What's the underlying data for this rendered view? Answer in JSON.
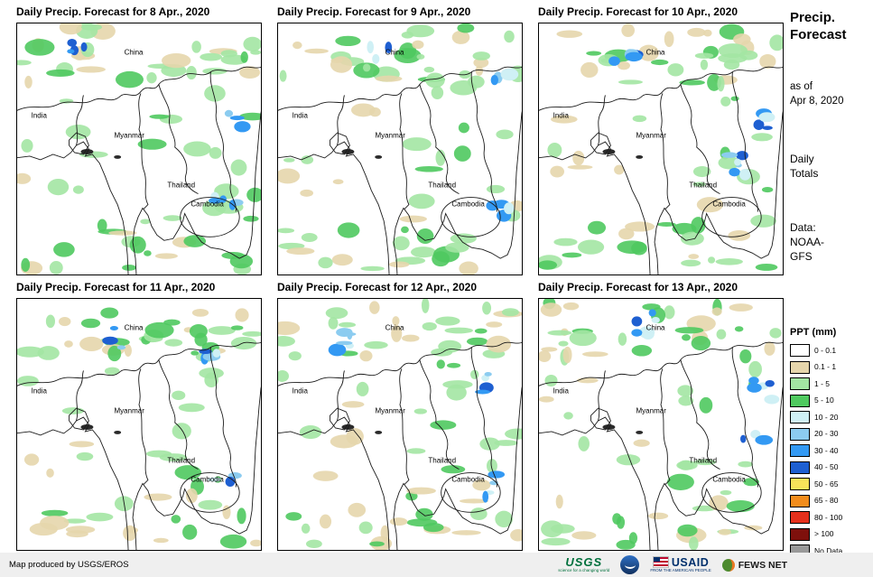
{
  "panels": [
    {
      "title": "Daily Precip. Forecast for 8 Apr., 2020"
    },
    {
      "title": "Daily Precip. Forecast for 9 Apr., 2020"
    },
    {
      "title": "Daily Precip. Forecast for 10 Apr., 2020"
    },
    {
      "title": "Daily Precip. Forecast for 11 Apr., 2020"
    },
    {
      "title": "Daily Precip. Forecast for 12 Apr., 2020"
    },
    {
      "title": "Daily Precip. Forecast for 13 Apr., 2020"
    }
  ],
  "map_labels": [
    "China",
    "India",
    "Myanmar",
    "Thailand",
    "Cambodia"
  ],
  "sidebar": {
    "title_line1": "Precip.",
    "title_line2": "Forecast",
    "as_of_line1": "as of",
    "as_of_line2": "Apr 8, 2020",
    "totals_line1": "Daily",
    "totals_line2": "Totals",
    "data_line1": "Data:",
    "data_line2": "NOAA-",
    "data_line3": "GFS"
  },
  "legend": {
    "title": "PPT (mm)",
    "entries": [
      {
        "label": "0 - 0.1",
        "color": "#FFFFFF"
      },
      {
        "label": "0.1 - 1",
        "color": "#E6D6AC"
      },
      {
        "label": "1 - 5",
        "color": "#A3E6A3"
      },
      {
        "label": "5 - 10",
        "color": "#4FC95F"
      },
      {
        "label": "10 - 20",
        "color": "#CFF0F5"
      },
      {
        "label": "20 - 30",
        "color": "#8CCCF0"
      },
      {
        "label": "30 - 40",
        "color": "#3399F3"
      },
      {
        "label": "40 - 50",
        "color": "#1E5FD1"
      },
      {
        "label": "50 - 65",
        "color": "#F8E35A"
      },
      {
        "label": "65 - 80",
        "color": "#F28C1C"
      },
      {
        "label": "80 - 100",
        "color": "#E5301C"
      },
      {
        "label": "> 100",
        "color": "#7E100C"
      },
      {
        "label": "No Data",
        "color": "#999999"
      }
    ]
  },
  "map_colors": {
    "tan": "#E6D6AC",
    "light_green": "#A3E6A3",
    "green": "#4FC95F",
    "cyan": "#CFF0F5",
    "light_blue": "#8CCCF0",
    "blue": "#3399F3",
    "deep_blue": "#1E5FD1"
  },
  "footer": {
    "credit": "Map produced by USGS/EROS",
    "logos": {
      "usgs": {
        "text": "USGS",
        "tagline": "science for a changing world"
      },
      "noaa": {
        "icon": "noaa-seal-icon"
      },
      "usaid": {
        "text": "USAID",
        "tagline": "FROM THE AMERICAN PEOPLE"
      },
      "fewsnet": {
        "text": "FEWS NET",
        "icon": "globe-icon"
      }
    }
  }
}
